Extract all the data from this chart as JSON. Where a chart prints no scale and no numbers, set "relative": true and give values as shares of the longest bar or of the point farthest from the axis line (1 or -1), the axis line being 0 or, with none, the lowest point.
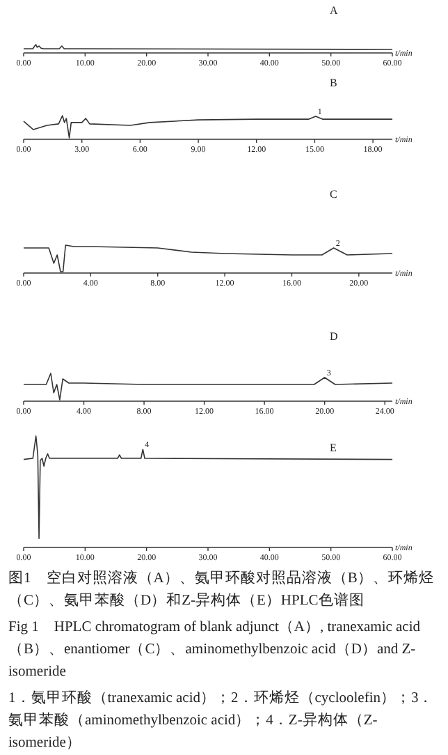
{
  "chart_data": [
    {
      "type": "line",
      "title": "A",
      "xlabel": "t/min",
      "relative": true,
      "color": "#333333",
      "x": [
        0,
        1.5,
        1.8,
        2.0,
        2.2,
        2.5,
        2.8,
        3.2,
        5.8,
        6.2,
        6.6,
        10,
        60
      ],
      "values": [
        0.5,
        0.5,
        0.83,
        1,
        0.67,
        0.83,
        0.58,
        0.5,
        0.5,
        0.83,
        0.5,
        0.5,
        0.42
      ],
      "xlim": [
        0,
        60
      ],
      "xticks": [
        {
          "value": 0,
          "label": "0.00"
        },
        {
          "value": 10,
          "label": "10.00"
        },
        {
          "value": 20,
          "label": "20.00"
        },
        {
          "value": 30,
          "label": "30.00"
        },
        {
          "value": 40,
          "label": "40.00"
        },
        {
          "value": 50,
          "label": "50.00"
        },
        {
          "value": 60,
          "label": "60.00"
        }
      ]
    },
    {
      "type": "line",
      "title": "B",
      "xlabel": "t/min",
      "relative": true,
      "color": "#333333",
      "x": [
        0,
        0.5,
        1.2,
        1.8,
        2.0,
        2.1,
        2.2,
        2.35,
        2.45,
        3.0,
        3.2,
        3.4,
        5.5,
        6.5,
        9,
        12,
        14.7,
        15.05,
        15.4,
        19
      ],
      "values": [
        0.76,
        0.41,
        0.59,
        0.65,
        1,
        0.71,
        0.88,
        0.06,
        0.71,
        0.71,
        0.88,
        0.65,
        0.59,
        0.71,
        0.82,
        0.85,
        0.85,
        0.97,
        0.85,
        0.85
      ],
      "xlim": [
        0,
        19
      ],
      "xticks": [
        {
          "value": 0,
          "label": "0.00"
        },
        {
          "value": 3,
          "label": "3.00"
        },
        {
          "value": 6,
          "label": "6.00"
        },
        {
          "value": 9,
          "label": "9.00"
        },
        {
          "value": 12,
          "label": "12.00"
        },
        {
          "value": 15,
          "label": "15.00"
        },
        {
          "value": 18,
          "label": "18.00"
        }
      ],
      "annotations": [
        {
          "text": "1",
          "x": 15.05,
          "y": 0.97
        }
      ]
    },
    {
      "type": "line",
      "title": "C",
      "xlabel": "t/min",
      "relative": true,
      "color": "#333333",
      "x": [
        0,
        1.5,
        1.8,
        2.0,
        2.2,
        2.35,
        2.5,
        3,
        4,
        8,
        10,
        12,
        16,
        17.8,
        18.5,
        19.3,
        22
      ],
      "values": [
        0.9,
        0.9,
        0.35,
        0.65,
        0.05,
        0.05,
        1,
        0.95,
        0.95,
        0.9,
        0.75,
        0.7,
        0.65,
        0.65,
        0.9,
        0.65,
        0.7
      ],
      "xlim": [
        0,
        22
      ],
      "xticks": [
        {
          "value": 0,
          "label": "0.00"
        },
        {
          "value": 4,
          "label": "4.00"
        },
        {
          "value": 8,
          "label": "8.00"
        },
        {
          "value": 12,
          "label": "12.00"
        },
        {
          "value": 16,
          "label": "16.00"
        },
        {
          "value": 20,
          "label": "20.00"
        }
      ],
      "annotations": [
        {
          "text": "2",
          "x": 18.5,
          "y": 0.9
        }
      ]
    },
    {
      "type": "line",
      "title": "D",
      "xlabel": "t/min",
      "relative": true,
      "color": "#333333",
      "x": [
        0,
        1.5,
        1.8,
        2.0,
        2.2,
        2.4,
        2.6,
        3,
        4,
        8,
        12,
        16,
        19.3,
        20,
        20.7,
        24.5
      ],
      "values": [
        0.6,
        0.6,
        1,
        0.3,
        0.6,
        0.05,
        0.8,
        0.65,
        0.65,
        0.6,
        0.6,
        0.6,
        0.6,
        0.85,
        0.6,
        0.65
      ],
      "xlim": [
        0,
        24.5
      ],
      "xticks": [
        {
          "value": 0,
          "label": "0.00"
        },
        {
          "value": 4,
          "label": "4.00"
        },
        {
          "value": 8,
          "label": "8.00"
        },
        {
          "value": 12,
          "label": "12.00"
        },
        {
          "value": 16,
          "label": "16.00"
        },
        {
          "value": 20,
          "label": "20.00"
        },
        {
          "value": 24,
          "label": "24.00"
        }
      ],
      "annotations": [
        {
          "text": "3",
          "x": 20,
          "y": 0.85
        }
      ]
    },
    {
      "type": "line",
      "title": "E",
      "xlabel": "t/min",
      "relative": true,
      "color": "#333333",
      "x": [
        0,
        1.5,
        2.0,
        2.3,
        2.5,
        2.7,
        3.0,
        3.3,
        3.6,
        3.9,
        4.2,
        15.3,
        15.6,
        15.9,
        19.1,
        19.4,
        19.7,
        60
      ],
      "values": [
        0.79,
        0.8,
        1,
        0.83,
        0.08,
        0.78,
        0.8,
        0.73,
        0.8,
        0.84,
        0.8,
        0.8,
        0.83,
        0.8,
        0.8,
        0.88,
        0.8,
        0.79
      ],
      "xlim": [
        0,
        60
      ],
      "xticks": [
        {
          "value": 0,
          "label": "0.00"
        },
        {
          "value": 10,
          "label": "10.00"
        },
        {
          "value": 20,
          "label": "20.00"
        },
        {
          "value": 30,
          "label": "30.00"
        },
        {
          "value": 40,
          "label": "40.00"
        },
        {
          "value": 50,
          "label": "50.00"
        },
        {
          "value": 60,
          "label": "60.00"
        }
      ],
      "annotations": [
        {
          "text": "4",
          "x": 19.4,
          "y": 0.88
        }
      ]
    },
    {
      "type": "other",
      "title": "图1　空白对照溶液（A）、氨甲环酸对照品溶液（B）、环烯烃（C）、氨甲苯酸（D）和Z-异构体（E）HPLC色谱图",
      "subtitle": "Fig 1　HPLC chromatogram of blank adjunct（A）, tranexamic acid（B）、enantiomer（C）、aminomethylbenzoic acid（D）and Z-isomeride",
      "annotations": [
        "1．氨甲环酸（tranexamic acid）；2．环烯烃（cycloolefin）；3．氨甲苯酸（aminomethylbenzoic acid）；4．Z-异构体（Z-isomeride）"
      ]
    }
  ]
}
